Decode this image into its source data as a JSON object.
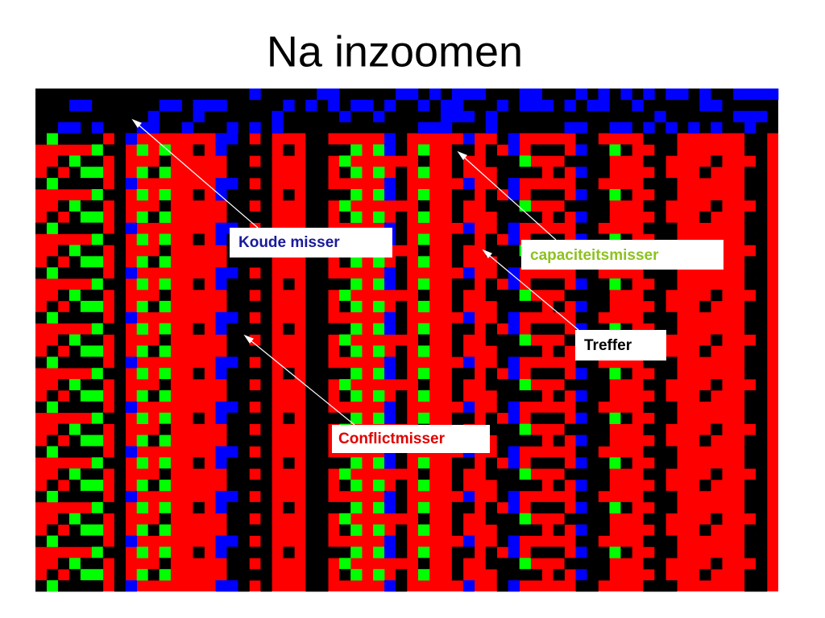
{
  "title": "Na inzoomen",
  "labels": {
    "cold": "Koude misser",
    "capacity": "capaciteitsmisser",
    "hit": "Treffer",
    "conflict": "Conflictmisser"
  }
}
